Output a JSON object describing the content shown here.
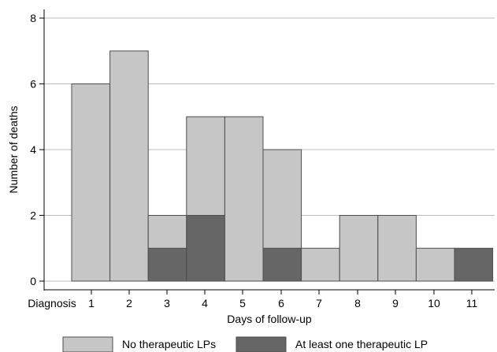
{
  "chart_data": {
    "type": "bar",
    "stacked": true,
    "x_tick_labels": [
      "Diagnosis",
      "1",
      "2",
      "3",
      "4",
      "5",
      "6",
      "7",
      "8",
      "9",
      "10",
      "11"
    ],
    "categories": [
      "1",
      "2",
      "3",
      "4",
      "5",
      "6",
      "7",
      "8",
      "9",
      "10",
      "11"
    ],
    "series": [
      {
        "name": "At least one therapeutic LP",
        "values": [
          0,
          0,
          1,
          2,
          0,
          1,
          0,
          0,
          0,
          0,
          1
        ],
        "color": "#666666"
      },
      {
        "name": "No therapeutic LPs",
        "values": [
          6,
          7,
          1,
          3,
          5,
          3,
          1,
          2,
          2,
          1,
          0
        ],
        "color": "#c6c6c6"
      }
    ],
    "xlabel": "Days of follow-up",
    "ylabel": "Number of deaths",
    "ylim": [
      0,
      8
    ],
    "yticks": [
      0,
      2,
      4,
      6,
      8
    ],
    "grid": true,
    "legend_position": "bottom",
    "legend_order": [
      "No therapeutic LPs",
      "At least one therapeutic LP"
    ]
  }
}
